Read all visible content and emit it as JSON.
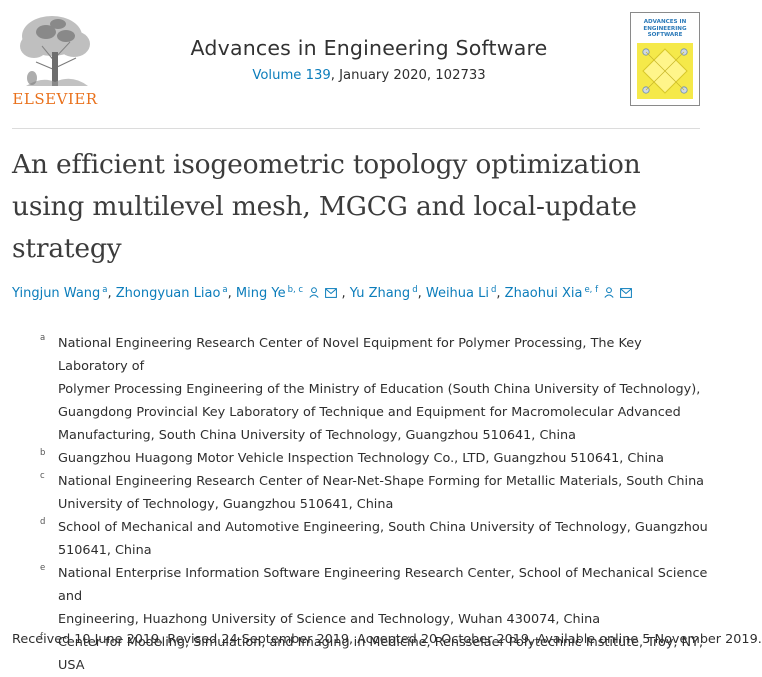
{
  "publisher": {
    "name": "ELSEVIER",
    "logo_icon": "elsevier-tree-icon",
    "color": "#e9711c"
  },
  "journal": {
    "title": "Advances in Engineering Software",
    "volume_link": "Volume 139",
    "issue_info": ", January 2020, 102733",
    "cover_text": [
      "ADVANCES IN",
      "ENGINEERING",
      "SOFTWARE"
    ]
  },
  "article": {
    "title_lines": [
      "An efficient isogeometric topology optimization",
      "using multilevel mesh, MGCG and local-update",
      "strategy"
    ]
  },
  "authors": [
    {
      "name": "Yingjun Wang",
      "sup": "a",
      "person_icon": false,
      "mail_icon": false
    },
    {
      "name": "Zhongyuan Liao",
      "sup": "a",
      "person_icon": false,
      "mail_icon": false
    },
    {
      "name": "Ming Ye",
      "sup": "b, c",
      "person_icon": true,
      "mail_icon": true
    },
    {
      "name": "Yu Zhang",
      "sup": "d",
      "person_icon": false,
      "mail_icon": false
    },
    {
      "name": "Weihua Li",
      "sup": "d",
      "person_icon": false,
      "mail_icon": false
    },
    {
      "name": "Zhaohui Xia",
      "sup": "e, f",
      "person_icon": true,
      "mail_icon": true
    }
  ],
  "affiliations": [
    {
      "label": "a",
      "lines": [
        "National Engineering Research Center of Novel Equipment for Polymer Processing, The Key Laboratory of",
        "Polymer Processing Engineering of the Ministry of Education (South China University of Technology),",
        "Guangdong Provincial Key Laboratory of Technique and Equipment for Macromolecular Advanced",
        "Manufacturing, South China University of Technology, Guangzhou 510641, China"
      ]
    },
    {
      "label": "b",
      "lines": [
        "Guangzhou Huagong Motor Vehicle Inspection Technology Co., LTD, Guangzhou 510641, China"
      ]
    },
    {
      "label": "c",
      "lines": [
        "National Engineering Research Center of Near-Net-Shape Forming for Metallic Materials, South China",
        "University of Technology, Guangzhou 510641, China"
      ]
    },
    {
      "label": "d",
      "lines": [
        "School of Mechanical and Automotive Engineering, South China University of Technology, Guangzhou",
        "510641, China"
      ]
    },
    {
      "label": "e",
      "lines": [
        "National Enterprise Information Software Engineering Research Center, School of Mechanical Science and",
        "Engineering, Huazhong University of Science and Technology, Wuhan 430074, China"
      ]
    },
    {
      "label": "f",
      "lines": [
        "Center for Modeling, Simulation, and Imaging in Medicine, Rensselaer Polytechnic Institute, Troy, NY, USA"
      ]
    }
  ],
  "history": "Received 10 June 2019, Revised 24 September 2019, Accepted 20 October 2019, Available online 5 November 2019.",
  "colors": {
    "link": "#0c7dbb",
    "text": "#2e2e2e",
    "title": "#3c3c3c"
  }
}
